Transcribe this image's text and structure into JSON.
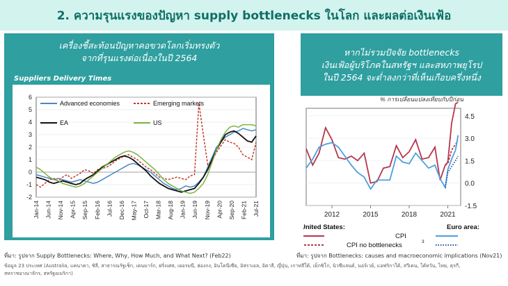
{
  "header": {
    "title": "2. ความรุนแรงของปัญหา supply bottlenecks ในโลก และผลต่อเงินเฟ้อ"
  },
  "left": {
    "heading_line1": "เครื่องชี้สะท้อนปัญหาคอขวดโลกเริ่มทรงตัว",
    "heading_line2": "จากที่รุนแรงต่อเนื่องในปี 2564",
    "chart_title": "Suppliers Delivery Times",
    "source": "ที่มา: รูปจาก Supply Bottlenecks: Where, Why, How Much, and What Next? (Feb22)",
    "note_line1": "ข้อมูล 23 ประเทศ (Australia, แคนาดา, ชิลี, สาธารณรัฐเช็ก, เดนมาร์ก, ฝรั่งเศส, เยอรมนี, ฮ่องกง, อินโดนีเซีย, อิสราเอล, อิตาลี, ญี่ปุ่น, เกาหลีใต้, เม็กซิโก, นิวซีแลนด์, นอร์เวย์, แอฟริกาใต้, สวีเดน, ไต้หวัน, ไทย, ตุรกี,",
    "note_line2": "สหราชอาณาจักร, สหรัฐอเมริกา)"
  },
  "right": {
    "heading_line1": "หากไม่รวมปัจจัย bottlenecks",
    "heading_line2": "เงินเฟ้อผู้บริโภคในสหรัฐฯ และสหภาพยุโรป",
    "heading_line3": "ในปี 2564 จะต่ำลงกว่าที่เห็นเกือบครึ่งหนึ่ง",
    "unit": "% การเปลี่ยนแปลงเทียบกับปีก่อน",
    "legend_us": "United States:",
    "legend_euro": "Euro area:",
    "legend_cpi": "CPI",
    "legend_cpi_nb": "CPI no bottlenecks",
    "legend_sup": "3",
    "source": "ที่มา: รูปจาก Bottlenecks: causes and macroeconomic implications (Nov21)"
  },
  "chart_data": [
    {
      "type": "line",
      "title": "Suppliers Delivery Times",
      "x_tick_labels": [
        "Jan-14",
        "Jun-14",
        "Nov-14",
        "Apr-15",
        "Sep-15",
        "Feb-16",
        "Jul-16",
        "Dec-16",
        "May-17",
        "Oct-17",
        "Mar-18",
        "Aug-18",
        "Jan-19",
        "Jun-19",
        "Nov-19",
        "Apr-20",
        "Sep-20",
        "Feb-21",
        "Jul-21"
      ],
      "ylim": [
        -2,
        6
      ],
      "y_ticks": [
        -2,
        -1,
        0,
        1,
        2,
        3,
        4,
        5,
        6
      ],
      "legend": "top-left",
      "series": [
        {
          "name": "Advanced economies",
          "color": "#4a86c8",
          "style": "solid",
          "values": [
            -0.2,
            -0.3,
            -0.4,
            -0.5,
            -0.6,
            -0.5,
            -0.6,
            -0.7,
            -0.8,
            -0.7,
            -0.6,
            -0.7,
            -0.8,
            -0.9,
            -0.8,
            -0.6,
            -0.4,
            -0.2,
            0.0,
            0.2,
            0.4,
            0.6,
            0.7,
            0.6,
            0.4,
            0.2,
            0.0,
            -0.3,
            -0.6,
            -0.9,
            -1.1,
            -1.3,
            -1.4,
            -1.3,
            -1.1,
            -1.2,
            -1.1,
            -0.8,
            -0.4,
            0.4,
            1.2,
            2.0,
            2.4,
            2.8,
            3.0,
            3.2,
            3.3,
            3.5,
            3.4,
            3.3,
            3.4
          ]
        },
        {
          "name": "Emerging markets",
          "color": "#c0392b",
          "style": "dashed",
          "values": [
            -1.0,
            -1.2,
            -0.9,
            -0.6,
            -0.5,
            -0.7,
            -0.4,
            -0.2,
            -0.5,
            -0.3,
            -0.1,
            0.2,
            0.1,
            -0.1,
            0.2,
            0.3,
            0.4,
            0.6,
            0.9,
            1.1,
            1.3,
            1.4,
            1.2,
            1.0,
            0.7,
            0.4,
            0.2,
            -0.1,
            -0.4,
            -0.5,
            -0.6,
            -0.5,
            -0.4,
            -0.5,
            -0.6,
            -0.3,
            -0.2,
            5.5,
            3.0,
            0.6,
            0.9,
            1.6,
            2.1,
            2.6,
            2.4,
            2.3,
            2.0,
            1.4,
            1.2,
            1.0,
            2.4
          ]
        },
        {
          "name": "EA",
          "color": "#111111",
          "style": "solid",
          "values": [
            -0.4,
            -0.5,
            -0.6,
            -0.8,
            -0.9,
            -0.8,
            -0.7,
            -0.8,
            -0.9,
            -1.0,
            -0.9,
            -0.6,
            -0.4,
            -0.2,
            0.1,
            0.4,
            0.6,
            0.8,
            1.0,
            1.2,
            1.3,
            1.2,
            1.0,
            0.7,
            0.4,
            0.1,
            -0.3,
            -0.6,
            -0.9,
            -1.1,
            -1.3,
            -1.4,
            -1.5,
            -1.6,
            -1.5,
            -1.4,
            -1.3,
            -0.9,
            -0.4,
            0.2,
            1.0,
            1.8,
            2.4,
            3.0,
            3.2,
            3.3,
            3.1,
            2.8,
            2.5,
            2.4,
            2.9
          ]
        },
        {
          "name": "US",
          "color": "#7cb342",
          "style": "solid",
          "values": [
            0.4,
            0.2,
            -0.1,
            -0.4,
            -0.6,
            -0.7,
            -0.9,
            -1.0,
            -1.1,
            -1.2,
            -1.1,
            -0.9,
            -0.6,
            -0.3,
            0.0,
            0.3,
            0.6,
            0.9,
            1.2,
            1.4,
            1.6,
            1.7,
            1.6,
            1.4,
            1.1,
            0.8,
            0.5,
            0.2,
            -0.2,
            -0.6,
            -0.9,
            -1.1,
            -1.3,
            -1.5,
            -1.6,
            -1.7,
            -1.6,
            -1.3,
            -0.9,
            -0.2,
            0.8,
            1.8,
            2.6,
            3.2,
            3.6,
            3.7,
            3.6,
            3.8,
            3.8,
            3.8,
            3.7
          ]
        }
      ]
    },
    {
      "type": "line",
      "ylabel": "% การเปลี่ยนแปลงเทียบกับปีก่อน",
      "x_tick_labels": [
        "2012",
        "2015",
        "2018",
        "2021"
      ],
      "ylim": [
        -1.5,
        5.0
      ],
      "y_ticks": [
        -1.5,
        0.0,
        1.5,
        3.0,
        4.5
      ],
      "series": [
        {
          "name": "United States CPI",
          "color": "#b5364a",
          "style": "solid",
          "x": [
            2010.0,
            2010.5,
            2011.0,
            2011.5,
            2012.0,
            2012.5,
            2013.0,
            2013.5,
            2014.0,
            2014.5,
            2015.0,
            2015.5,
            2016.0,
            2016.5,
            2017.0,
            2017.5,
            2018.0,
            2018.5,
            2019.0,
            2019.5,
            2020.0,
            2020.4,
            2020.8,
            2021.0,
            2021.3,
            2021.6,
            2021.8
          ],
          "y": [
            2.3,
            1.2,
            2.0,
            3.7,
            2.9,
            1.7,
            1.6,
            1.8,
            1.5,
            2.0,
            0.0,
            0.1,
            1.0,
            1.1,
            2.5,
            1.7,
            2.1,
            2.9,
            1.6,
            1.7,
            2.4,
            0.2,
            1.2,
            1.4,
            4.0,
            5.3,
            5.4
          ]
        },
        {
          "name": "United States CPI no bottlenecks",
          "color": "#b5364a",
          "style": "dashed",
          "x": [
            2020.8,
            2021.0,
            2021.3,
            2021.6,
            2021.8
          ],
          "y": [
            1.2,
            1.3,
            2.2,
            2.6,
            2.8
          ]
        },
        {
          "name": "Euro area CPI",
          "color": "#4a9fe0",
          "style": "solid",
          "x": [
            2010.0,
            2010.5,
            2011.0,
            2011.5,
            2012.0,
            2012.5,
            2013.0,
            2013.5,
            2014.0,
            2014.5,
            2015.0,
            2015.5,
            2016.0,
            2016.5,
            2017.0,
            2017.5,
            2018.0,
            2018.5,
            2019.0,
            2019.5,
            2020.0,
            2020.4,
            2020.8,
            2021.0,
            2021.3,
            2021.6,
            2021.8
          ],
          "y": [
            1.0,
            1.6,
            2.4,
            2.6,
            2.7,
            2.4,
            1.8,
            1.2,
            0.7,
            0.4,
            -0.4,
            0.2,
            0.2,
            0.2,
            1.8,
            1.4,
            1.3,
            2.0,
            1.5,
            1.0,
            1.2,
            0.3,
            -0.3,
            0.9,
            1.6,
            2.2,
            3.2
          ]
        },
        {
          "name": "Euro area CPI no bottlenecks",
          "color": "#1f4fa3",
          "style": "dotted",
          "x": [
            2020.8,
            2021.0,
            2021.3,
            2021.6,
            2021.8
          ],
          "y": [
            -0.3,
            0.7,
            1.1,
            1.5,
            1.8
          ]
        }
      ]
    }
  ]
}
